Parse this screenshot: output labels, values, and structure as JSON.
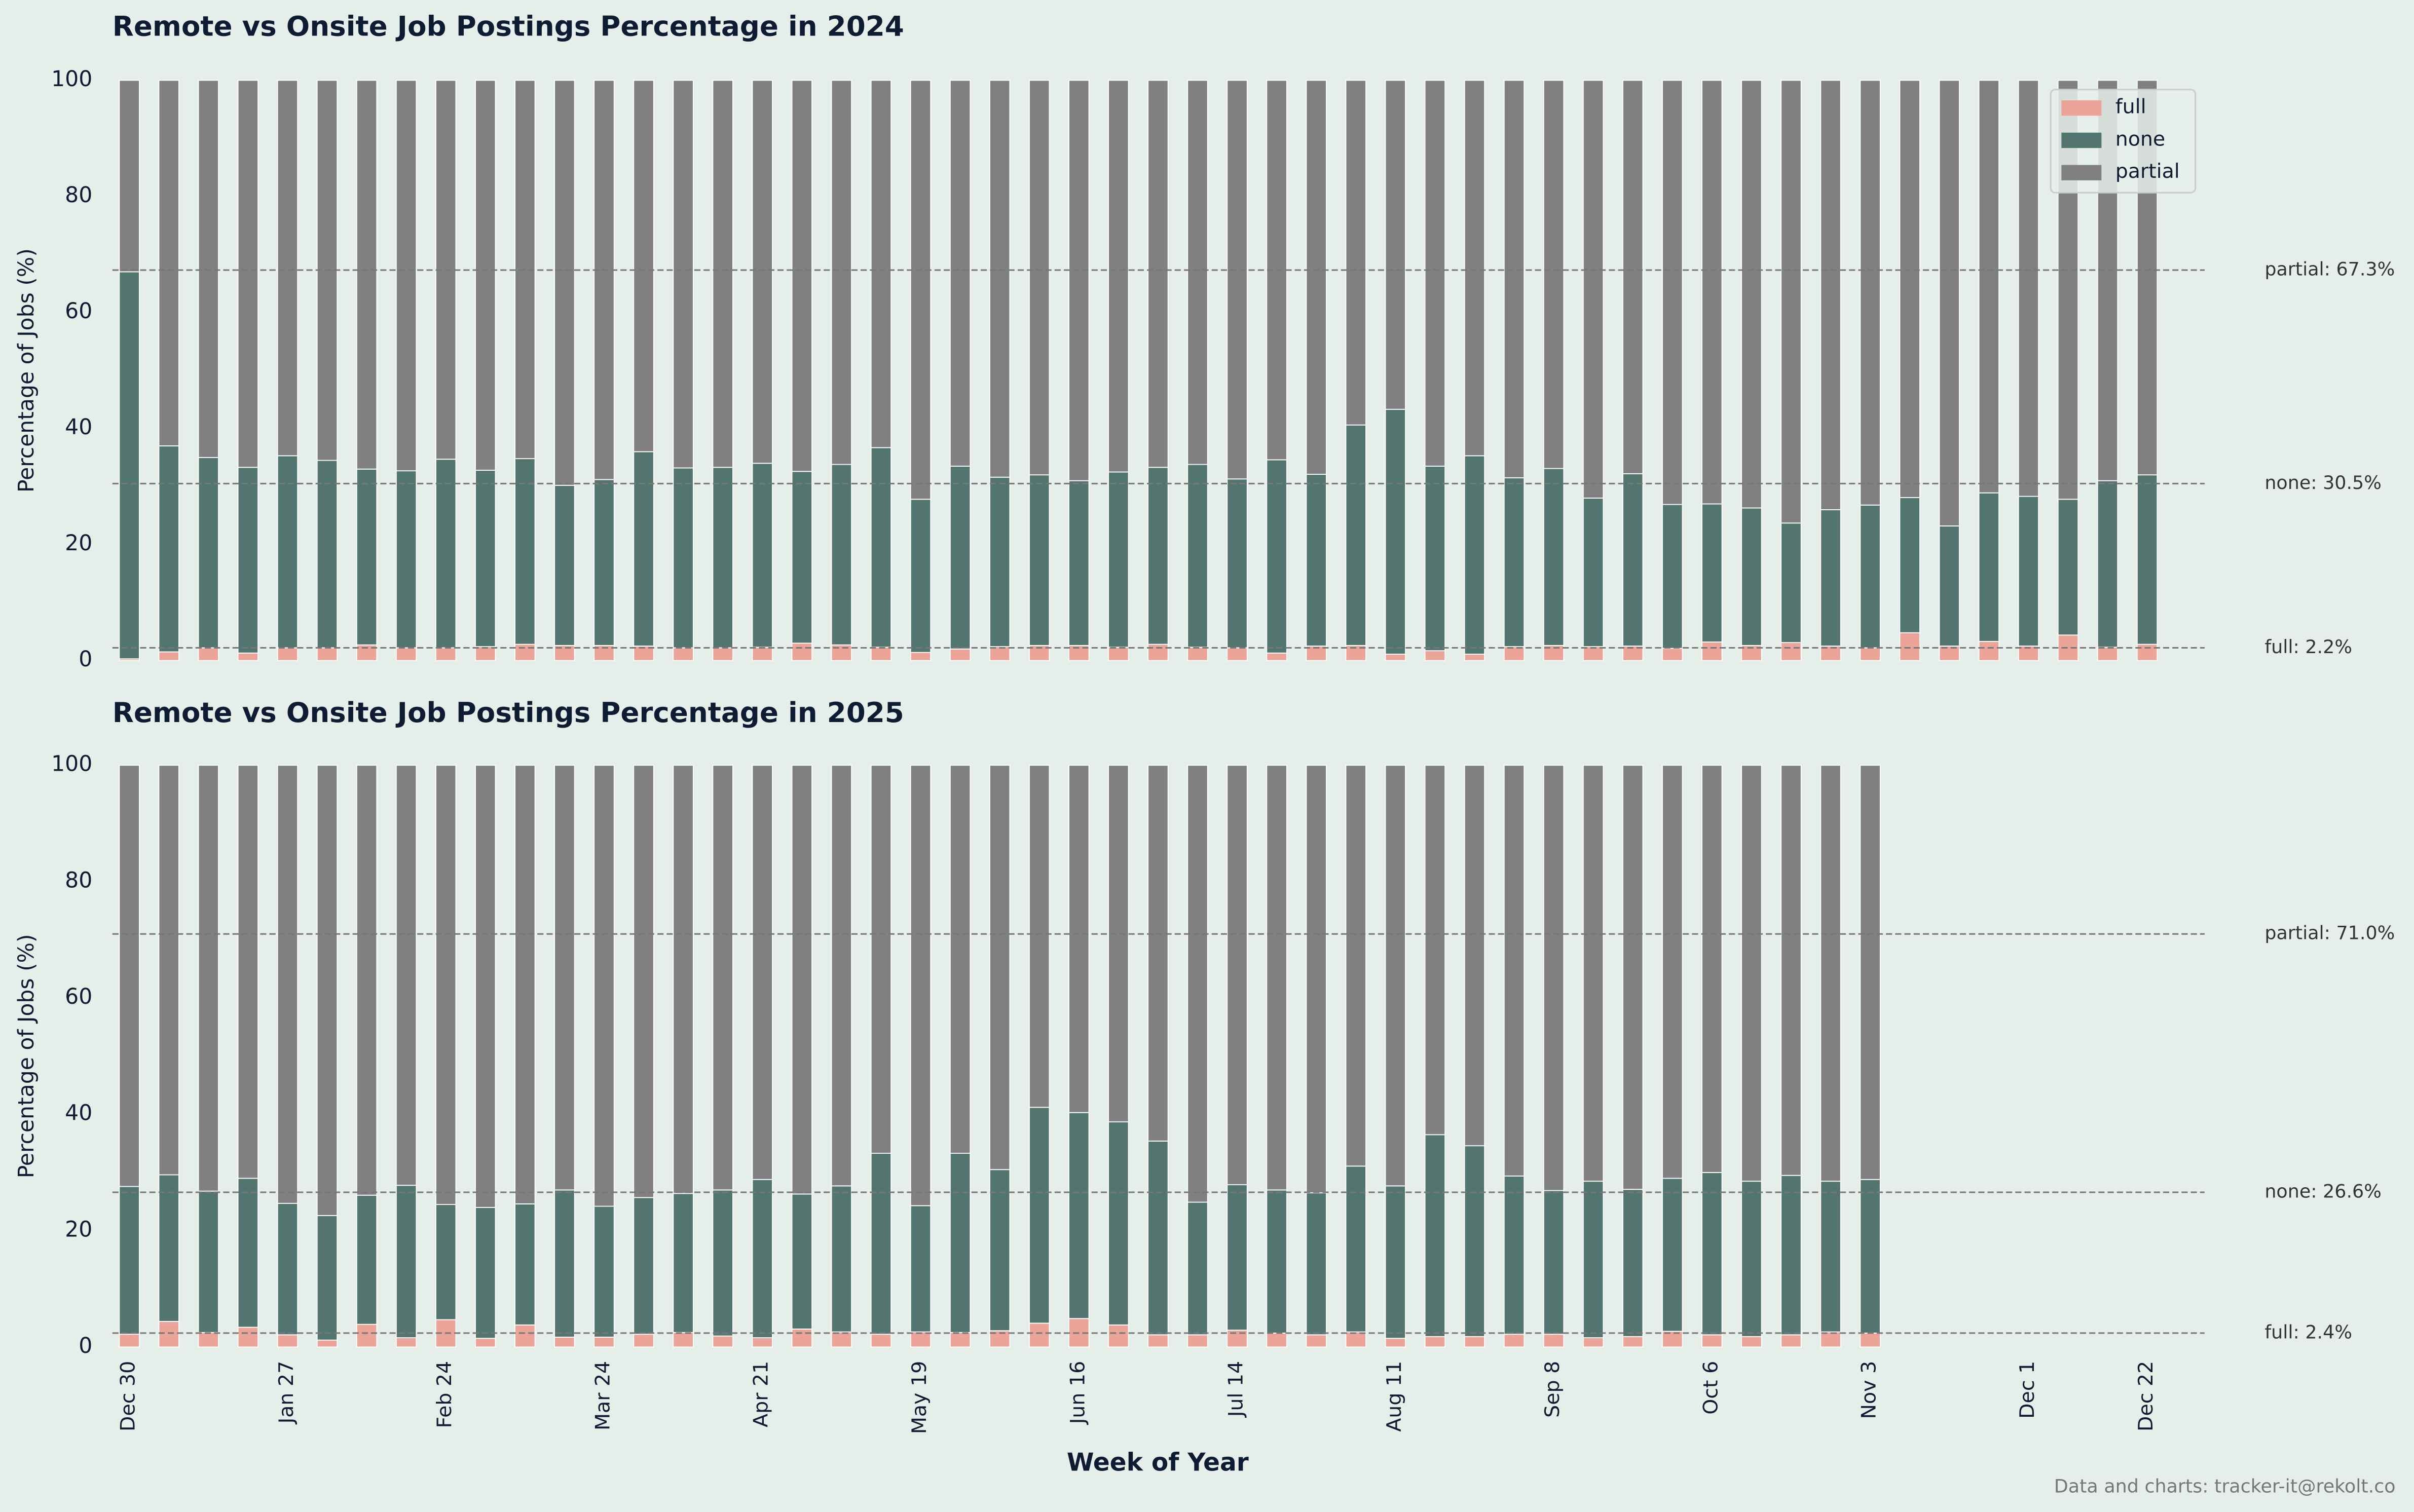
{
  "chart_data": [
    {
      "type": "stacked_bar",
      "title": "Remote vs Onsite Job Postings Percentage in 2024",
      "y_label": "Percentage of Jobs (%)",
      "ylim": [
        0,
        100
      ],
      "yticks": [
        0,
        20,
        40,
        60,
        80,
        100
      ],
      "grid": false,
      "legend": "upper right",
      "series": [
        {
          "name": "full",
          "color": "#eba497",
          "values": [
            0.3,
            1.5,
            2.2,
            1.3,
            2.2,
            2.2,
            2.7,
            2.2,
            2.2,
            2.4,
            2.8,
            2.6,
            2.6,
            2.5,
            2.2,
            2.2,
            2.3,
            3.0,
            2.7,
            2.3,
            1.4,
            2.0,
            2.4,
            2.6,
            2.6,
            2.3,
            2.8,
            2.3,
            2.2,
            1.3,
            2.5,
            2.6,
            1.1,
            1.7,
            1.1,
            2.4,
            2.6,
            2.4,
            2.5,
            2.1,
            3.2,
            2.6,
            3.1,
            2.5,
            2.2,
            4.8,
            2.5,
            3.3,
            2.5,
            4.4,
            2.3,
            2.8
          ]
        },
        {
          "name": "none",
          "color": "#52756f",
          "values": [
            66.7,
            35.5,
            32.8,
            32.0,
            33.1,
            32.3,
            30.3,
            30.5,
            32.5,
            30.4,
            32.0,
            27.6,
            28.6,
            33.5,
            31.0,
            31.1,
            31.7,
            29.6,
            31.1,
            34.4,
            26.4,
            31.5,
            29.2,
            29.4,
            28.4,
            30.2,
            30.5,
            31.5,
            29.1,
            33.3,
            29.6,
            38.0,
            42.2,
            31.8,
            34.2,
            29.1,
            30.5,
            25.6,
            29.7,
            24.8,
            23.8,
            23.7,
            20.6,
            23.5,
            24.6,
            23.3,
            20.7,
            25.6,
            25.8,
            23.4,
            28.7,
            29.2
          ]
        },
        {
          "name": "partial",
          "color": "#808080",
          "values": [
            33.0,
            63.0,
            65.0,
            66.7,
            64.7,
            65.5,
            67.0,
            67.3,
            65.3,
            67.2,
            65.2,
            69.8,
            68.8,
            64.0,
            66.8,
            66.7,
            66.0,
            67.4,
            66.2,
            63.3,
            72.2,
            66.5,
            68.4,
            68.0,
            69.0,
            67.5,
            66.7,
            66.2,
            68.7,
            65.4,
            67.9,
            59.4,
            56.7,
            66.5,
            64.7,
            68.5,
            66.9,
            72.0,
            67.8,
            73.1,
            73.0,
            73.7,
            76.3,
            74.0,
            73.2,
            71.9,
            76.8,
            71.1,
            71.7,
            72.2,
            69.0,
            68.0
          ]
        }
      ],
      "reference_lines": [
        {
          "label": "partial: 67.3%",
          "value": 67.3
        },
        {
          "label": "none: 30.5%",
          "value": 30.5
        },
        {
          "label": "full: 2.2%",
          "value": 2.2
        }
      ]
    },
    {
      "type": "stacked_bar",
      "title": "Remote vs Onsite Job Postings Percentage in 2025",
      "y_label": "Percentage of Jobs (%)",
      "x_label": "Week of Year",
      "categories": [
        "Dec 30",
        null,
        null,
        null,
        "Jan 27",
        null,
        null,
        null,
        "Feb 24",
        null,
        null,
        null,
        "Mar 24",
        null,
        null,
        null,
        "Apr 21",
        null,
        null,
        null,
        "May 19",
        null,
        null,
        null,
        "Jun 16",
        null,
        null,
        null,
        "Jul 14",
        null,
        null,
        null,
        "Aug 11",
        null,
        null,
        null,
        "Sep 8",
        null,
        null,
        null,
        "Oct 6",
        null,
        null,
        null,
        "Nov 3",
        null,
        null,
        null,
        "Dec 1",
        null,
        null,
        "Dec 22"
      ],
      "ylim": [
        0,
        100
      ],
      "yticks": [
        0,
        20,
        40,
        60,
        80,
        100
      ],
      "grid": false,
      "series": [
        {
          "name": "full",
          "color": "#eba497",
          "values": [
            2.2,
            4.4,
            2.5,
            3.4,
            2.1,
            1.2,
            3.9,
            1.6,
            4.7,
            1.5,
            3.8,
            1.7,
            1.7,
            2.2,
            2.5,
            1.9,
            1.6,
            3.1,
            2.6,
            2.2,
            2.6,
            2.5,
            2.8,
            4.1,
            4.9,
            3.8,
            2.1,
            2.1,
            2.9,
            2.4,
            2.1,
            2.6,
            1.5,
            1.8,
            1.8,
            2.2,
            2.2,
            1.6,
            1.8,
            2.7,
            2.1,
            1.8,
            2.1,
            2.6,
            2.4,
            null,
            null,
            null,
            null,
            null,
            null,
            null
          ]
        },
        {
          "name": "none",
          "color": "#52756f",
          "values": [
            25.4,
            25.2,
            24.3,
            25.6,
            22.6,
            21.4,
            22.2,
            26.2,
            19.8,
            22.5,
            20.8,
            25.3,
            22.5,
            23.5,
            23.9,
            25.1,
            27.2,
            23.2,
            25.1,
            31.1,
            21.7,
            30.8,
            27.7,
            37.1,
            35.4,
            34.9,
            33.3,
            22.8,
            25.0,
            24.6,
            24.4,
            28.5,
            26.2,
            34.7,
            32.8,
            27.2,
            24.7,
            26.9,
            25.3,
            26.3,
            27.9,
            26.7,
            27.4,
            25.9,
            26.4,
            null,
            null,
            null,
            null,
            null,
            null,
            null
          ]
        },
        {
          "name": "partial",
          "color": "#808080",
          "values": [
            72.4,
            70.4,
            73.2,
            71.0,
            75.3,
            77.4,
            73.9,
            72.2,
            75.5,
            76.0,
            75.4,
            73.0,
            75.8,
            74.3,
            73.6,
            73.0,
            71.2,
            73.7,
            72.3,
            66.7,
            75.7,
            66.7,
            69.5,
            58.8,
            59.7,
            61.3,
            64.6,
            75.1,
            72.1,
            73.0,
            73.5,
            68.9,
            72.3,
            63.5,
            65.4,
            70.6,
            73.1,
            71.5,
            72.9,
            71.0,
            70.0,
            71.5,
            70.5,
            71.5,
            71.2,
            null,
            null,
            null,
            null,
            null,
            null,
            null
          ]
        }
      ],
      "reference_lines": [
        {
          "label": "partial: 71.0%",
          "value": 71.0
        },
        {
          "label": "none: 26.6%",
          "value": 26.6
        },
        {
          "label": "full: 2.4%",
          "value": 2.4
        }
      ]
    }
  ],
  "footer": "Data and charts: tracker-it@rekolt.co"
}
